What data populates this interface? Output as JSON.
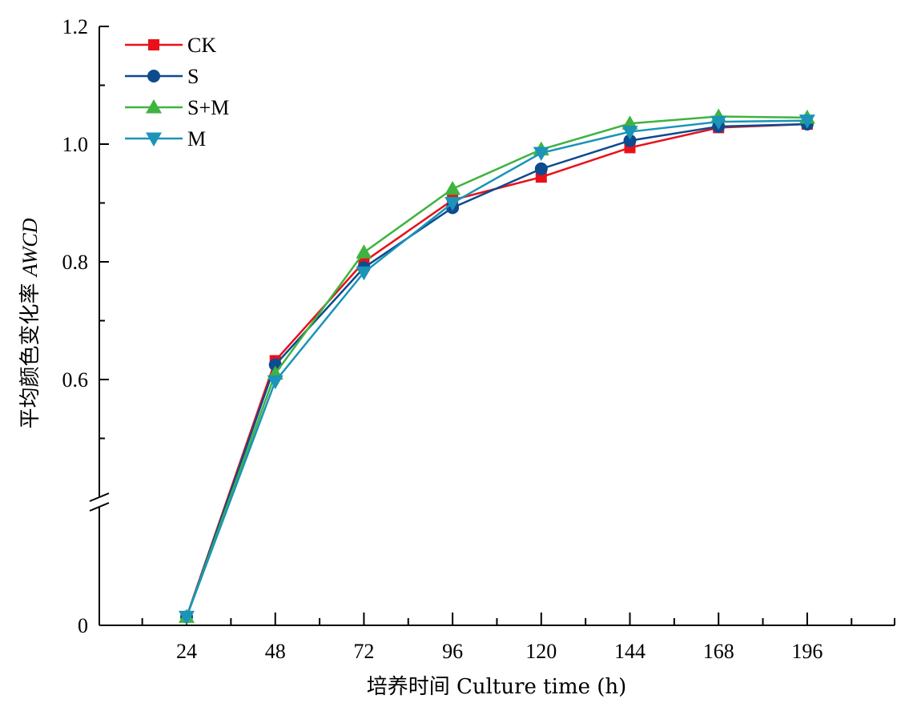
{
  "chart_data": {
    "type": "line",
    "xlabel": "培养时间 Culture time (h)",
    "ylabel_cn": "平均颜色变化率 ",
    "ylabel_en": "AWCD",
    "x": [
      24,
      48,
      72,
      96,
      120,
      144,
      168,
      196
    ],
    "x_ticks": [
      "24",
      "48",
      "72",
      "96",
      "120",
      "144",
      "168",
      "196"
    ],
    "y_ticks": [
      "0",
      "0.6",
      "0.8",
      "1.0",
      "1.2"
    ],
    "y_axis_break": true,
    "ylim": [
      0,
      1.2
    ],
    "grid": false,
    "legend_position": "top-left",
    "series": [
      {
        "name": "CK",
        "color": "#e8111a",
        "marker": "square",
        "values": [
          0.01,
          0.632,
          0.8,
          0.905,
          0.944,
          0.994,
          1.028,
          1.034
        ]
      },
      {
        "name": "S",
        "color": "#0d4a8e",
        "marker": "circle",
        "values": [
          0.01,
          0.625,
          0.79,
          0.892,
          0.958,
          1.006,
          1.03,
          1.034
        ]
      },
      {
        "name": "S+M",
        "color": "#3fb33f",
        "marker": "triangle-up",
        "values": [
          0.01,
          0.61,
          0.816,
          0.924,
          0.991,
          1.035,
          1.047,
          1.045
        ]
      },
      {
        "name": "M",
        "color": "#1a94b8",
        "marker": "triangle-down",
        "values": [
          0.01,
          0.597,
          0.782,
          0.9,
          0.985,
          1.021,
          1.038,
          1.04
        ]
      }
    ]
  }
}
